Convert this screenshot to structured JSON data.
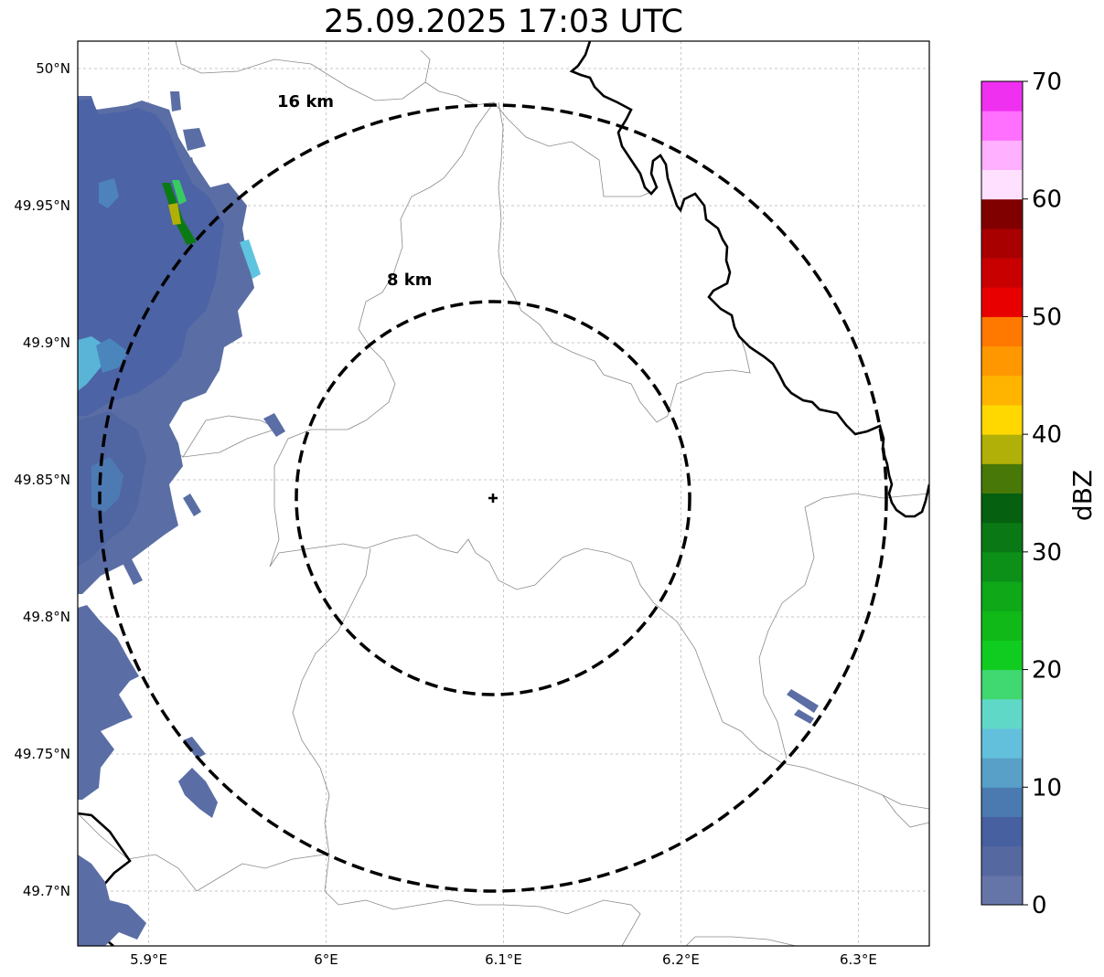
{
  "title": "25.09.2025 17:03 UTC",
  "map": {
    "lon_range": [
      5.86,
      6.34
    ],
    "lat_range": [
      49.68,
      50.01
    ],
    "center": {
      "lon": 6.095,
      "lat": 49.843
    },
    "grid": true,
    "x_ticks": [
      {
        "value": 5.9,
        "label": "5.9°E"
      },
      {
        "value": 6.0,
        "label": "6°E"
      },
      {
        "value": 6.1,
        "label": "6.1°E"
      },
      {
        "value": 6.2,
        "label": "6.2°E"
      },
      {
        "value": 6.3,
        "label": "6.3°E"
      }
    ],
    "y_ticks": [
      {
        "value": 50.0,
        "label": "50°N"
      },
      {
        "value": 49.95,
        "label": "49.95°N"
      },
      {
        "value": 49.9,
        "label": "49.9°N"
      },
      {
        "value": 49.85,
        "label": "49.85°N"
      },
      {
        "value": 49.8,
        "label": "49.8°N"
      },
      {
        "value": 49.75,
        "label": "49.75°N"
      },
      {
        "value": 49.7,
        "label": "49.7°N"
      }
    ],
    "rings": [
      {
        "radius_km": 8,
        "label": "8 km"
      },
      {
        "radius_km": 16,
        "label": "16 km"
      }
    ]
  },
  "colorbar": {
    "label": "dBZ",
    "range": [
      0,
      70
    ],
    "ticks": [
      "0",
      "10",
      "20",
      "30",
      "40",
      "50",
      "60",
      "70"
    ],
    "colors": [
      "#6675a8",
      "#5668a0",
      "#4660a0",
      "#4a7ab0",
      "#58a0c8",
      "#62c0dc",
      "#60d8c8",
      "#40d870",
      "#10cc20",
      "#10b818",
      "#0ea818",
      "#0c9018",
      "#0a7814",
      "#056010",
      "#487808",
      "#b0b008",
      "#ffd800",
      "#ffb400",
      "#ff9800",
      "#ff7800",
      "#e80000",
      "#c80000",
      "#a80000",
      "#800000",
      "#ffe0ff",
      "#ffb0ff",
      "#ff70ff",
      "#f030f0"
    ]
  }
}
